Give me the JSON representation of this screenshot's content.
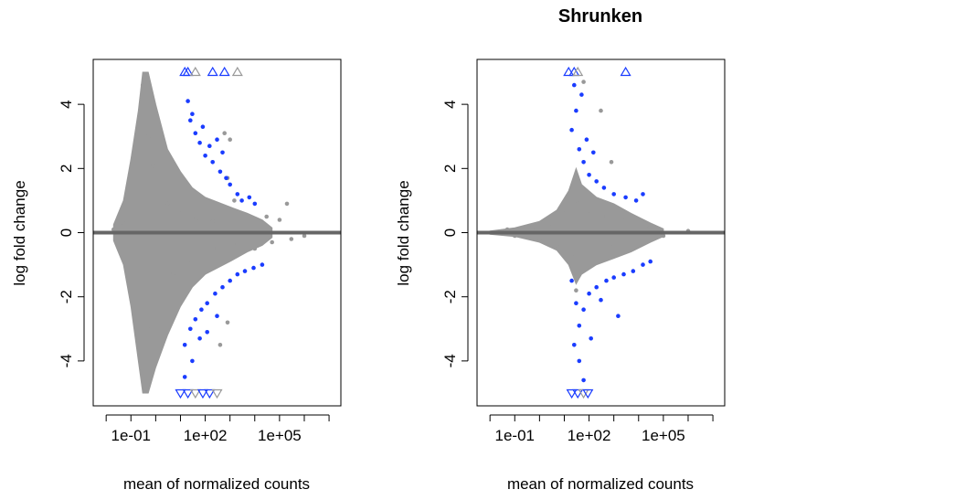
{
  "chart_data": [
    {
      "type": "scatter",
      "title": "",
      "xlabel": "mean of normalized counts",
      "ylabel": "log fold change",
      "x_scale": "log10",
      "xlim": [
        0.003,
        30000000
      ],
      "ylim": [
        -5.4,
        5.4
      ],
      "x_ticks": [
        0.1,
        100,
        100000
      ],
      "x_tick_labels": [
        "1e-01",
        "1e+02",
        "1e+05"
      ],
      "y_ticks": [
        -4,
        -2,
        0,
        2,
        4
      ],
      "y_tick_labels": [
        "-4",
        "-2",
        "0",
        "2",
        "4"
      ],
      "reference_line_y": 0,
      "colors": {
        "not_significant": "#999999",
        "significant": "#1a3cff",
        "reference_line": "#666666"
      },
      "series": [
        {
          "name": "",
          "color": "#999999",
          "points": [
            [
              0.3,
              4.6
            ],
            [
              0.5,
              3.0
            ],
            [
              0.8,
              2.1
            ],
            [
              1.5,
              1.4
            ],
            [
              3,
              0.9
            ],
            [
              10,
              0.6
            ],
            [
              40,
              0.4
            ],
            [
              200,
              0.35
            ],
            [
              1000,
              0.3
            ],
            [
              3000,
              0.25
            ],
            [
              10000,
              0.3
            ],
            [
              30000,
              0.5
            ],
            [
              100000,
              0.4
            ],
            [
              200000,
              0.9
            ],
            [
              0.2,
              -2.3
            ],
            [
              0.6,
              -2.9
            ],
            [
              1,
              -1.7
            ],
            [
              5,
              -1.3
            ],
            [
              20,
              -0.9
            ],
            [
              300,
              -0.5
            ],
            [
              2000,
              -0.35
            ],
            [
              10000,
              -0.5
            ],
            [
              50000,
              -0.3
            ],
            [
              300000,
              -0.2
            ],
            [
              1000000,
              -0.1
            ],
            [
              0.05,
              0.3
            ],
            [
              0.02,
              0.1
            ],
            [
              1000,
              2.9
            ],
            [
              800,
              1.7
            ],
            [
              1500,
              1.0
            ],
            [
              600,
              3.1
            ],
            [
              400,
              -3.5
            ],
            [
              800,
              -2.8
            ]
          ]
        },
        {
          "name": "",
          "color": "#1a3cff",
          "points": [
            [
              20,
              4.1
            ],
            [
              30,
              3.7
            ],
            [
              40,
              3.1
            ],
            [
              60,
              2.8
            ],
            [
              100,
              2.4
            ],
            [
              200,
              2.2
            ],
            [
              400,
              1.9
            ],
            [
              700,
              1.7
            ],
            [
              1000,
              1.5
            ],
            [
              2000,
              1.2
            ],
            [
              3000,
              1.0
            ],
            [
              6000,
              1.1
            ],
            [
              10000,
              0.9
            ],
            [
              25,
              3.5
            ],
            [
              80,
              3.3
            ],
            [
              150,
              2.7
            ],
            [
              300,
              2.9
            ],
            [
              500,
              2.5
            ],
            [
              15,
              -3.5
            ],
            [
              25,
              -3.0
            ],
            [
              40,
              -2.7
            ],
            [
              70,
              -2.4
            ],
            [
              120,
              -2.2
            ],
            [
              250,
              -1.9
            ],
            [
              500,
              -1.7
            ],
            [
              1000,
              -1.5
            ],
            [
              2000,
              -1.3
            ],
            [
              4000,
              -1.2
            ],
            [
              9000,
              -1.1
            ],
            [
              20000,
              -1.0
            ],
            [
              15,
              -4.5
            ],
            [
              30,
              -4.0
            ],
            [
              60,
              -3.3
            ],
            [
              120,
              -3.1
            ],
            [
              300,
              -2.6
            ]
          ]
        }
      ],
      "triangles_up": [
        [
          15,
          5.0
        ],
        [
          20,
          5.0
        ],
        [
          40,
          5.0
        ],
        [
          200,
          5.0
        ],
        [
          600,
          5.0
        ],
        [
          2000,
          5.0
        ]
      ],
      "triangles_down": [
        [
          10,
          -5.0
        ],
        [
          20,
          -5.0
        ],
        [
          40,
          -5.0
        ],
        [
          80,
          -5.0
        ],
        [
          150,
          -5.0
        ],
        [
          300,
          -5.0
        ]
      ]
    },
    {
      "type": "scatter",
      "title": "Shrunken",
      "xlabel": "mean of normalized counts",
      "ylabel": "log fold change",
      "x_scale": "log10",
      "xlim": [
        0.003,
        30000000
      ],
      "ylim": [
        -5.4,
        5.4
      ],
      "x_ticks": [
        0.1,
        100,
        100000
      ],
      "x_tick_labels": [
        "1e-01",
        "1e+02",
        "1e+05"
      ],
      "y_ticks": [
        -4,
        -2,
        0,
        2,
        4
      ],
      "y_tick_labels": [
        "-4",
        "-2",
        "0",
        "2",
        "4"
      ],
      "reference_line_y": 0,
      "colors": {
        "not_significant": "#999999",
        "significant": "#1a3cff",
        "reference_line": "#666666"
      },
      "series": [
        {
          "name": "",
          "color": "#999999",
          "points": [
            [
              0.05,
              0.1
            ],
            [
              0.5,
              0.15
            ],
            [
              3,
              0.3
            ],
            [
              10,
              0.6
            ],
            [
              30,
              1.0
            ],
            [
              100,
              0.7
            ],
            [
              500,
              0.5
            ],
            [
              3000,
              0.4
            ],
            [
              20000,
              0.2
            ],
            [
              0.1,
              -0.1
            ],
            [
              1,
              -0.2
            ],
            [
              5,
              -0.4
            ],
            [
              20,
              -0.7
            ],
            [
              100,
              -0.6
            ],
            [
              1000,
              -0.4
            ],
            [
              10000,
              -0.3
            ],
            [
              100000,
              -0.1
            ],
            [
              1000000,
              0.05
            ],
            [
              300,
              3.8
            ],
            [
              60,
              4.7
            ],
            [
              30,
              -1.8
            ],
            [
              800,
              2.2
            ]
          ]
        },
        {
          "name": "",
          "color": "#1a3cff",
          "points": [
            [
              20,
              3.2
            ],
            [
              40,
              2.6
            ],
            [
              60,
              2.2
            ],
            [
              100,
              1.8
            ],
            [
              200,
              1.6
            ],
            [
              400,
              1.4
            ],
            [
              1000,
              1.2
            ],
            [
              3000,
              1.1
            ],
            [
              8000,
              1.0
            ],
            [
              15000,
              1.2
            ],
            [
              30,
              3.8
            ],
            [
              50,
              4.3
            ],
            [
              25,
              4.6
            ],
            [
              80,
              2.9
            ],
            [
              150,
              2.5
            ],
            [
              20,
              -1.5
            ],
            [
              30,
              -2.2
            ],
            [
              40,
              -2.9
            ],
            [
              60,
              -2.4
            ],
            [
              100,
              -1.9
            ],
            [
              200,
              -1.7
            ],
            [
              500,
              -1.5
            ],
            [
              1000,
              -1.4
            ],
            [
              2500,
              -1.3
            ],
            [
              6000,
              -1.2
            ],
            [
              15000,
              -1.0
            ],
            [
              30000,
              -0.9
            ],
            [
              25,
              -3.5
            ],
            [
              40,
              -4.0
            ],
            [
              60,
              -4.6
            ],
            [
              120,
              -3.3
            ],
            [
              300,
              -2.1
            ],
            [
              1500,
              -2.6
            ]
          ]
        }
      ],
      "triangles_up": [
        [
          15,
          5.0
        ],
        [
          25,
          5.0
        ],
        [
          35,
          5.0
        ],
        [
          3000,
          5.0
        ]
      ],
      "triangles_down": [
        [
          20,
          -5.0
        ],
        [
          35,
          -5.0
        ],
        [
          60,
          -5.0
        ],
        [
          90,
          -5.0
        ]
      ]
    }
  ]
}
